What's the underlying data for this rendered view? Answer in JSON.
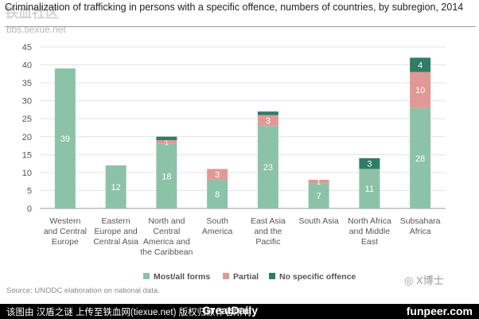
{
  "header": {
    "title": "Criminalization of trafficking in persons with a specific offence, numbers of countries, by subregion, 2014",
    "watermark": "铁血社区",
    "watermark_url": "bbs.tiexue.net"
  },
  "chart_data": {
    "type": "bar",
    "stacked": true,
    "title": "Criminalization of trafficking in persons with a specific offence, numbers of countries, by subregion, 2014",
    "xlabel": "",
    "ylabel": "",
    "ylim": [
      0,
      45
    ],
    "yticks": [
      0,
      5,
      10,
      15,
      20,
      25,
      30,
      35,
      40,
      45
    ],
    "grid": true,
    "legend_position": "bottom",
    "categories": [
      "Western and Central Europe",
      "Eastern Europe and Central Asia",
      "North and Central America and the Caribbean",
      "South America",
      "East Asia and the Pacific",
      "South Asia",
      "North Africa and Middle East",
      "Subsahara Africa"
    ],
    "category_lines": [
      [
        "Western",
        "and Central",
        "Europe"
      ],
      [
        "Eastern",
        "Europe and",
        "Central Asia"
      ],
      [
        "North and",
        "Central",
        "America and",
        "the Caribbean"
      ],
      [
        "South",
        "America"
      ],
      [
        "East Asia",
        "and the",
        "Pacific"
      ],
      [
        "South Asia"
      ],
      [
        "North Africa",
        "and Middle",
        "East"
      ],
      [
        "Subsahara",
        "Africa"
      ]
    ],
    "series": [
      {
        "name": "Most/all forms",
        "color": "#8cc3a8",
        "values": [
          39,
          12,
          18,
          8,
          23,
          7,
          11,
          28
        ]
      },
      {
        "name": "Partial",
        "color": "#e09a95",
        "values": [
          0,
          0,
          1,
          3,
          3,
          1,
          0,
          10
        ]
      },
      {
        "name": "No specific offence",
        "color": "#2e7d64",
        "values": [
          0,
          0,
          1,
          0,
          1,
          0,
          3,
          4
        ]
      }
    ],
    "data_labels": [
      [
        "39",
        "12",
        "18",
        "8",
        "23",
        "7",
        "11",
        "28"
      ],
      [
        "",
        "",
        "1",
        "3",
        "3",
        "1",
        "",
        "10"
      ],
      [
        "",
        "",
        "",
        "",
        "",
        "",
        "3",
        "4"
      ]
    ]
  },
  "footer": {
    "source": "Source: UNODC elaboration on national data.",
    "wechat": "X博士",
    "credit": "该图由 汉盾之谜 上传至铁血网(tiexue.net) 版权归原作者所有",
    "brand": "GreatDaily",
    "site": "funpeer.com"
  }
}
